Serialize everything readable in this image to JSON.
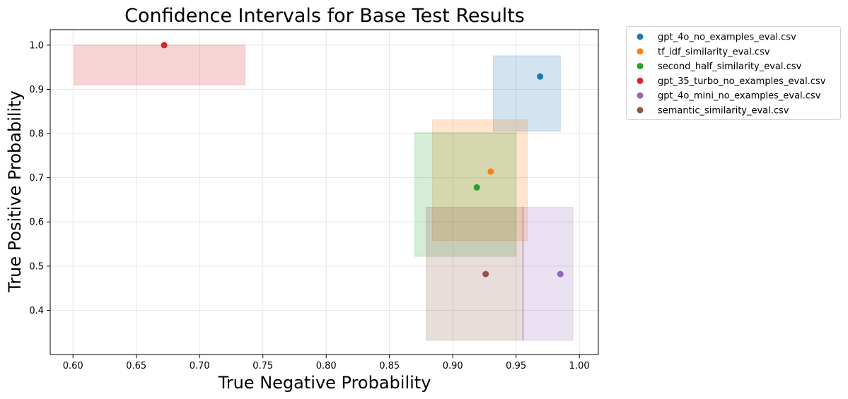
{
  "chart_data": {
    "type": "scatter",
    "title": "Confidence Intervals for Base Test Results",
    "xlabel": "True Negative Probability",
    "ylabel": "True Positive Probability",
    "xlim": [
      0.582,
      1.015
    ],
    "ylim": [
      0.3,
      1.035
    ],
    "xticks": [
      "0.60",
      "0.65",
      "0.70",
      "0.75",
      "0.80",
      "0.85",
      "0.90",
      "0.95",
      "1.00"
    ],
    "yticks": [
      "0.4",
      "0.5",
      "0.6",
      "0.7",
      "0.8",
      "0.9",
      "1.0"
    ],
    "grid": true,
    "legend_position": "outside-top-right",
    "series": [
      {
        "name": "gpt_4o_no_examples_eval.csv",
        "color": "#1f77b4",
        "x": 0.969,
        "y": 0.929,
        "x_ci": [
          0.932,
          0.985
        ],
        "y_ci": [
          0.805,
          0.976
        ]
      },
      {
        "name": "tf_idf_similarity_eval.csv",
        "color": "#ff7f0e",
        "x": 0.93,
        "y": 0.714,
        "x_ci": [
          0.884,
          0.959
        ],
        "y_ci": [
          0.558,
          0.831
        ]
      },
      {
        "name": "second_half_similarity_eval.csv",
        "color": "#2ca02c",
        "x": 0.919,
        "y": 0.678,
        "x_ci": [
          0.87,
          0.95
        ],
        "y_ci": [
          0.522,
          0.802
        ]
      },
      {
        "name": "gpt_35_turbo_no_examples_eval.csv",
        "color": "#d62728",
        "x": 0.672,
        "y": 1.0,
        "x_ci": [
          0.601,
          0.736
        ],
        "y_ci": [
          0.91,
          1.0
        ]
      },
      {
        "name": "gpt_4o_mini_no_examples_eval.csv",
        "color": "#9467bd",
        "x": 0.985,
        "y": 0.482,
        "x_ci": [
          0.955,
          0.995
        ],
        "y_ci": [
          0.332,
          0.633
        ]
      },
      {
        "name": "semantic_similarity_eval.csv",
        "color": "#8c564b",
        "x": 0.926,
        "y": 0.482,
        "x_ci": [
          0.879,
          0.956
        ],
        "y_ci": [
          0.332,
          0.633
        ]
      }
    ]
  }
}
